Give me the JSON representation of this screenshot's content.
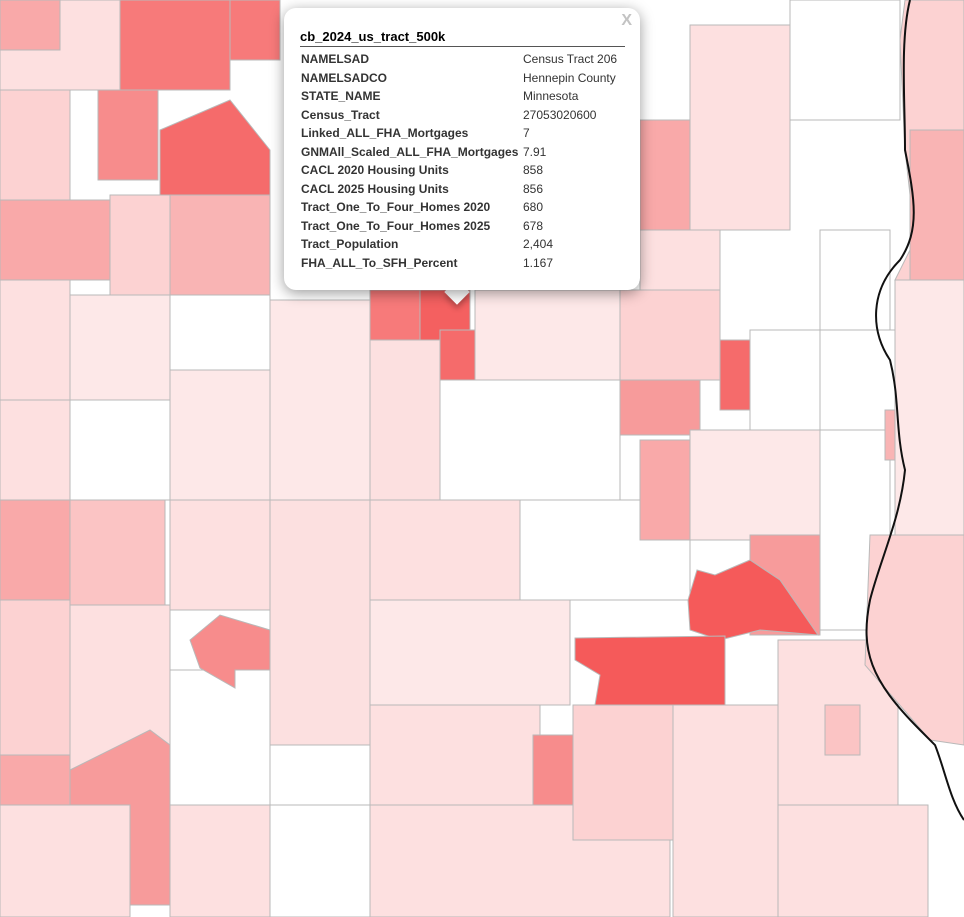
{
  "popup": {
    "title": "cb_2024_us_tract_500k",
    "close": "X",
    "rows": [
      {
        "field": "NAMELSAD",
        "value": "Census Tract 206"
      },
      {
        "field": "NAMELSADCO",
        "value": "Hennepin County"
      },
      {
        "field": "STATE_NAME",
        "value": "Minnesota"
      },
      {
        "field": "Census_Tract",
        "value": "27053020600"
      },
      {
        "field": "Linked_ALL_FHA_Mortgages",
        "value": "7"
      },
      {
        "field": "GNMAll_Scaled_ALL_FHA_Mortgages",
        "value": "7.91"
      },
      {
        "field": "CACL 2020 Housing Units",
        "value": "858"
      },
      {
        "field": "CACL 2025 Housing Units",
        "value": "856"
      },
      {
        "field": "Tract_One_To_Four_Homes 2020",
        "value": "680"
      },
      {
        "field": "Tract_One_To_Four_Homes 2025",
        "value": "678"
      },
      {
        "field": "Tract_Population",
        "value": "2,404"
      },
      {
        "field": "FHA_ALL_To_SFH_Percent",
        "value": "1.167"
      }
    ]
  }
}
